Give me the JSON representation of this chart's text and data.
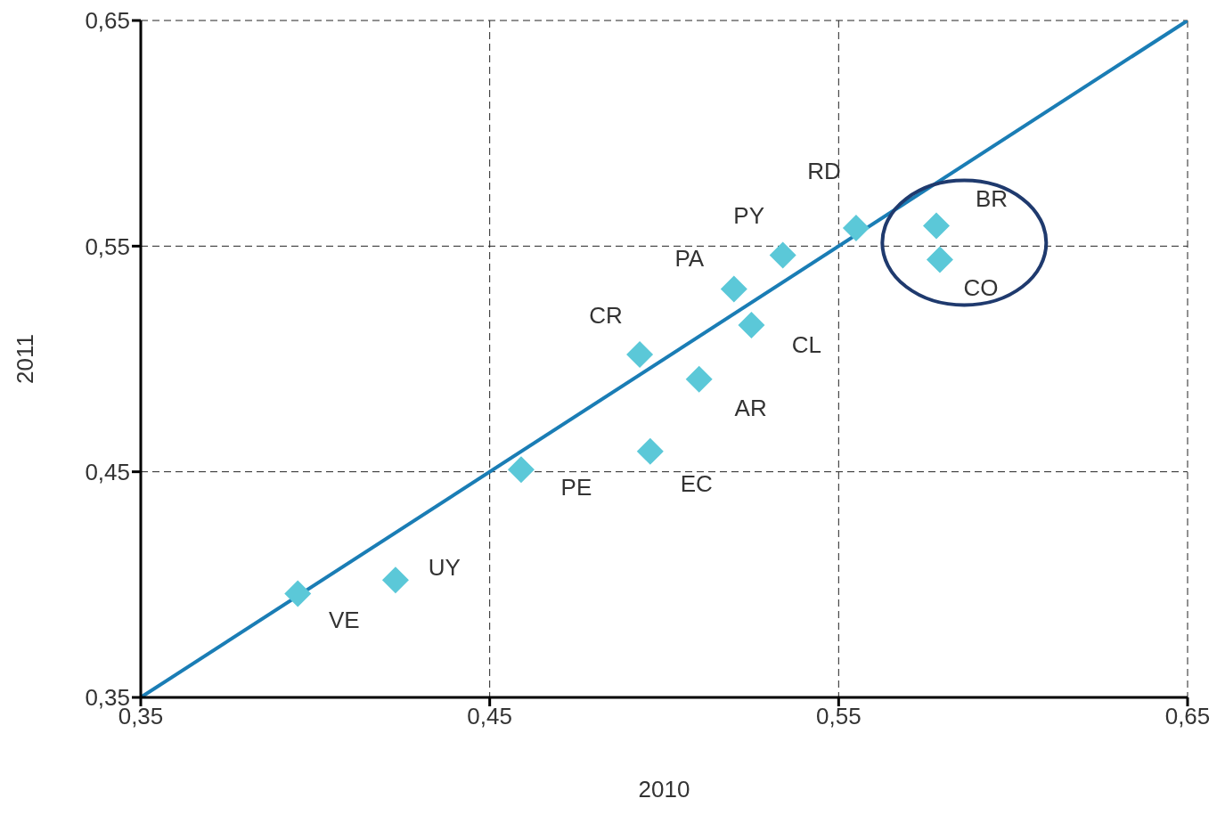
{
  "chart_data": {
    "type": "scatter",
    "xlabel": "2010",
    "ylabel": "2011",
    "xlim": [
      0.35,
      0.65
    ],
    "ylim": [
      0.35,
      0.65
    ],
    "xticks": [
      {
        "value": 0.35,
        "label": "0,35"
      },
      {
        "value": 0.45,
        "label": "0,45"
      },
      {
        "value": 0.55,
        "label": "0,55"
      },
      {
        "value": 0.65,
        "label": "0,65"
      }
    ],
    "yticks": [
      {
        "value": 0.35,
        "label": "0,35"
      },
      {
        "value": 0.45,
        "label": "0,45"
      },
      {
        "value": 0.55,
        "label": "0,55"
      },
      {
        "value": 0.65,
        "label": "0,65"
      }
    ],
    "grid": true,
    "legend": false,
    "marker": "diamond",
    "series": [
      {
        "type": "scatter",
        "color": "#5bc8d8",
        "x": [
          0.395,
          0.423,
          0.459,
          0.496,
          0.493,
          0.51,
          0.52,
          0.525,
          0.534,
          0.555,
          0.578,
          0.579
        ],
        "values": [
          0.396,
          0.402,
          0.451,
          0.459,
          0.502,
          0.491,
          0.531,
          0.515,
          0.546,
          0.558,
          0.559,
          0.544
        ]
      },
      {
        "type": "line",
        "color": "#1a7db5",
        "line_style": "solid",
        "marker": "none",
        "x": [
          0.35,
          0.65
        ],
        "values": [
          0.35,
          0.65
        ]
      }
    ],
    "annotations": [
      {
        "text": "VE",
        "x": 0.395,
        "y": 0.396
      },
      {
        "text": "UY",
        "x": 0.423,
        "y": 0.402
      },
      {
        "text": "PE",
        "x": 0.459,
        "y": 0.451
      },
      {
        "text": "EC",
        "x": 0.496,
        "y": 0.459
      },
      {
        "text": "CR",
        "x": 0.493,
        "y": 0.502
      },
      {
        "text": "AR",
        "x": 0.51,
        "y": 0.491
      },
      {
        "text": "PA",
        "x": 0.52,
        "y": 0.531
      },
      {
        "text": "CL",
        "x": 0.525,
        "y": 0.515
      },
      {
        "text": "PY",
        "x": 0.534,
        "y": 0.546
      },
      {
        "text": "RD",
        "x": 0.555,
        "y": 0.558
      },
      {
        "text": "BR",
        "x": 0.578,
        "y": 0.559
      },
      {
        "text": "CO",
        "x": 0.579,
        "y": 0.544
      }
    ]
  }
}
